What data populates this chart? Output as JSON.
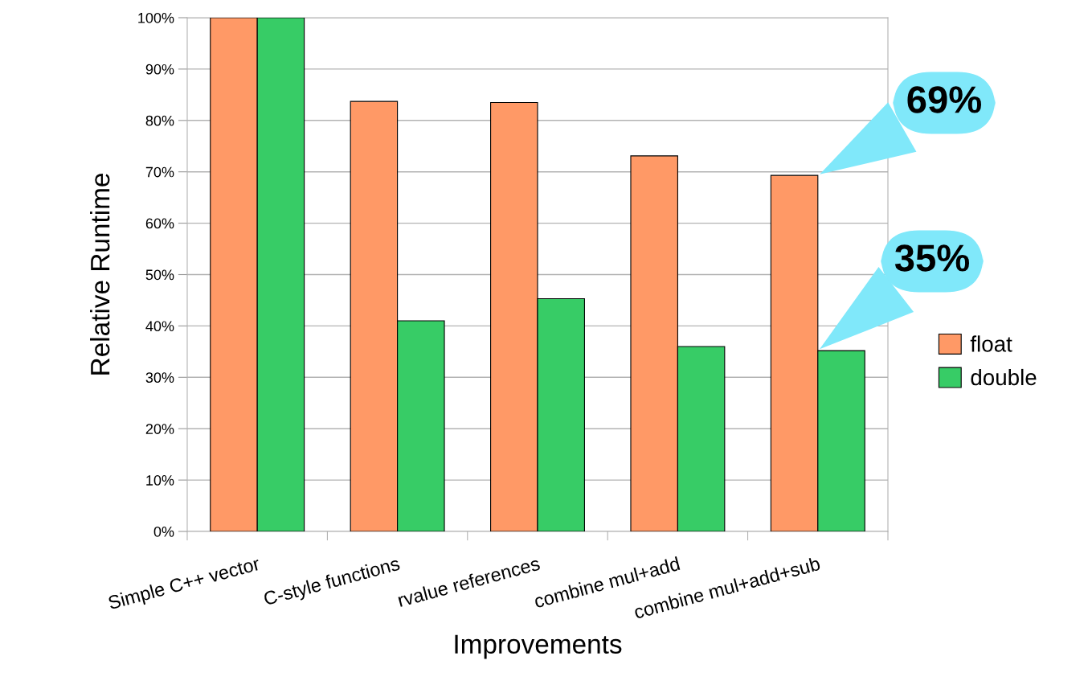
{
  "chart_data": {
    "type": "bar",
    "xlabel": "Improvements",
    "ylabel": "Relative Runtime",
    "categories": [
      "Simple C++ vector",
      "C-style functions",
      "rvalue references",
      "combine mul+add",
      "combine mul+add+sub"
    ],
    "series": [
      {
        "name": "float",
        "color": "#ff9966",
        "values": [
          100,
          83.7,
          83.5,
          73.1,
          69.3
        ]
      },
      {
        "name": "double",
        "color": "#37cc66",
        "values": [
          100,
          41.0,
          45.3,
          36.0,
          35.2
        ]
      }
    ],
    "ylim": [
      0,
      100
    ],
    "yticks": [
      {
        "value": 0,
        "label": "0%"
      },
      {
        "value": 10,
        "label": "10%"
      },
      {
        "value": 20,
        "label": "20%"
      },
      {
        "value": 30,
        "label": "30%"
      },
      {
        "value": 40,
        "label": "40%"
      },
      {
        "value": 50,
        "label": "50%"
      },
      {
        "value": 60,
        "label": "60%"
      },
      {
        "value": 70,
        "label": "70%"
      },
      {
        "value": 80,
        "label": "80%"
      },
      {
        "value": 90,
        "label": "90%"
      },
      {
        "value": 100,
        "label": "100%"
      }
    ],
    "grid": "y",
    "legend": "right",
    "annotations": [
      {
        "text": "69%",
        "x": "combine mul+add+sub",
        "y": 69.3
      },
      {
        "text": "35%",
        "x": "combine mul+add+sub",
        "y": 35.2
      }
    ]
  }
}
